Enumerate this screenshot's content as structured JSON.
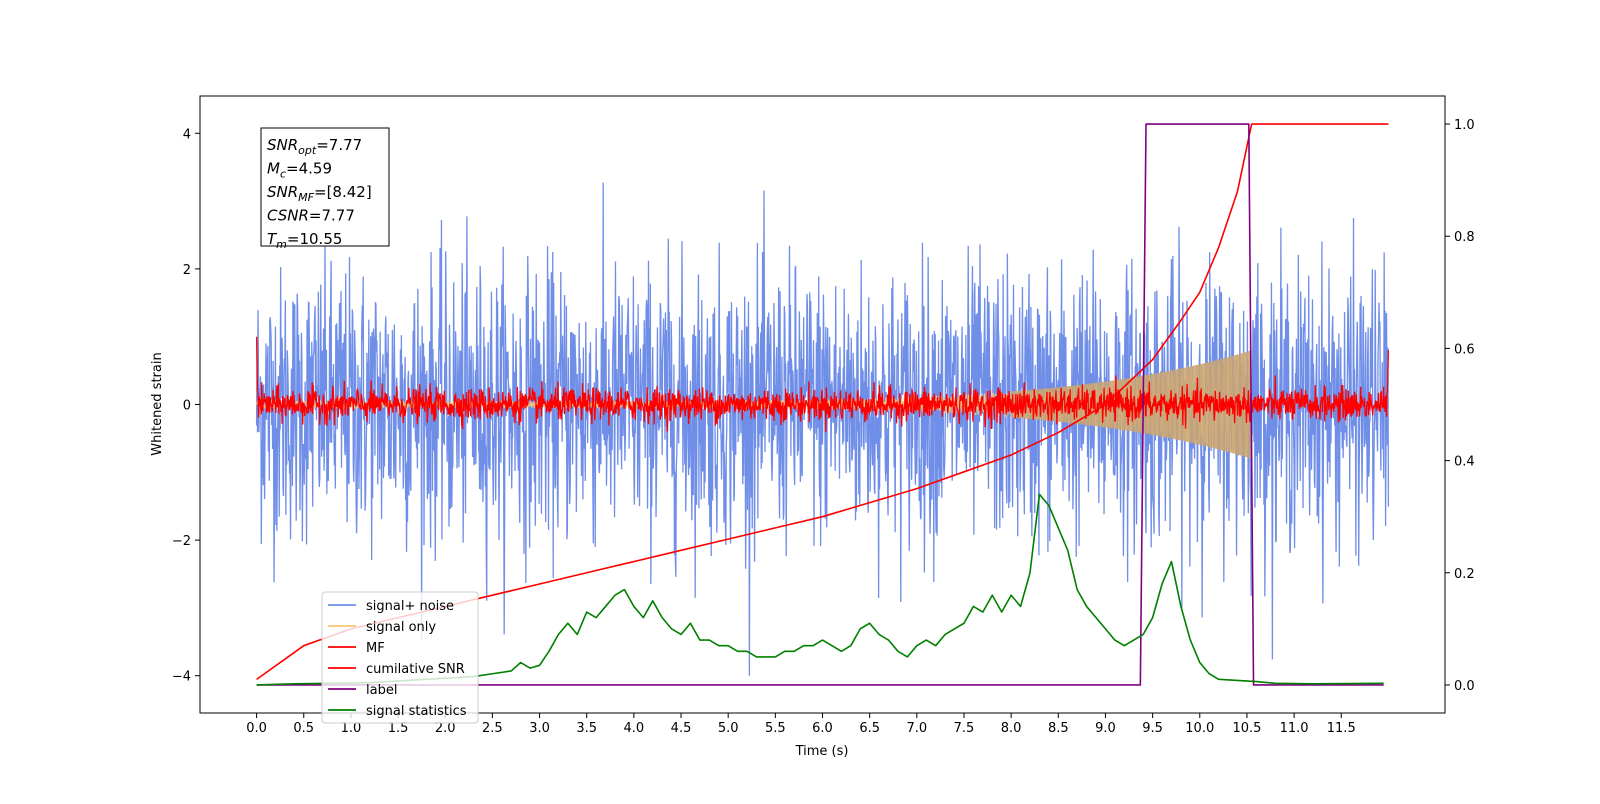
{
  "chart_data": {
    "type": "line",
    "xlabel": "Time (s)",
    "ylabel": "Whitened strain",
    "xlim": [
      -0.6,
      12.6
    ],
    "ylim_left": [
      -4.55,
      4.55
    ],
    "ylim_right": [
      -0.05,
      1.05
    ],
    "x_ticks": [
      "0.0",
      "0.5",
      "1.0",
      "1.5",
      "2.0",
      "2.5",
      "3.0",
      "3.5",
      "4.0",
      "4.5",
      "5.0",
      "5.5",
      "6.0",
      "6.5",
      "7.0",
      "7.5",
      "8.0",
      "8.5",
      "9.0",
      "9.5",
      "10.0",
      "10.5",
      "11.0",
      "11.5"
    ],
    "y_ticks_left": [
      "−4",
      "−2",
      "0",
      "2",
      "4"
    ],
    "y_ticks_right": [
      "0.0",
      "0.2",
      "0.4",
      "0.6",
      "0.8",
      "1.0"
    ],
    "legend_position": "lower left",
    "info_box": [
      {
        "var": "SNR",
        "sub": "opt",
        "val": "=7.77"
      },
      {
        "var": "M",
        "sub": "c",
        "val": "=4.59"
      },
      {
        "var": "SNR",
        "sub": "MF",
        "val": "=[8.42]"
      },
      {
        "var": "CSNR",
        "sub": "",
        "val": "=7.77"
      },
      {
        "var": "T",
        "sub": "m",
        "val": "=10.55"
      }
    ],
    "series": [
      {
        "name": "signal+ noise",
        "color": "#6f8ee8",
        "axis": "left",
        "style": "noise",
        "envelope_sigma": 1.0,
        "x_range": [
          0.0,
          12.0
        ]
      },
      {
        "name": "signal only",
        "color": "#f5c475",
        "axis": "left",
        "style": "chirp",
        "amplitude_start": 0.05,
        "amplitude_end": 0.8,
        "merger_time": 10.55
      },
      {
        "name": "MF",
        "color": "#ff0000",
        "axis": "left",
        "style": "noise",
        "envelope_sigma": 0.12
      },
      {
        "name": "cumilative SNR",
        "color": "#ff0000",
        "axis": "right",
        "x": [
          0.0,
          0.5,
          1.0,
          1.5,
          2.0,
          2.5,
          3.0,
          3.5,
          4.0,
          4.5,
          5.0,
          5.5,
          6.0,
          6.5,
          7.0,
          7.5,
          8.0,
          8.5,
          9.0,
          9.5,
          9.8,
          10.0,
          10.2,
          10.4,
          10.55,
          10.6,
          11.0,
          11.5,
          12.0
        ],
        "y": [
          0.01,
          0.07,
          0.1,
          0.12,
          0.14,
          0.16,
          0.18,
          0.2,
          0.22,
          0.24,
          0.26,
          0.28,
          0.3,
          0.325,
          0.35,
          0.38,
          0.41,
          0.45,
          0.5,
          0.58,
          0.65,
          0.7,
          0.78,
          0.88,
          1.0,
          1.0,
          1.0,
          1.0,
          1.0
        ]
      },
      {
        "name": "label",
        "color": "#800080",
        "axis": "right",
        "x": [
          0.0,
          9.37,
          9.43,
          10.52,
          10.57,
          11.0,
          11.95
        ],
        "y": [
          0.0,
          0.0,
          1.0,
          1.0,
          0.0,
          0.0,
          0.0
        ]
      },
      {
        "name": "signal statistics",
        "color": "#008000",
        "axis": "right",
        "x": [
          0.0,
          0.4,
          0.8,
          1.2,
          1.6,
          2.0,
          2.3,
          2.5,
          2.7,
          2.8,
          2.9,
          3.0,
          3.1,
          3.2,
          3.3,
          3.4,
          3.5,
          3.6,
          3.7,
          3.8,
          3.9,
          4.0,
          4.1,
          4.2,
          4.3,
          4.4,
          4.5,
          4.6,
          4.7,
          4.8,
          4.9,
          5.0,
          5.1,
          5.2,
          5.3,
          5.4,
          5.5,
          5.6,
          5.7,
          5.8,
          5.9,
          6.0,
          6.1,
          6.2,
          6.3,
          6.4,
          6.5,
          6.6,
          6.7,
          6.8,
          6.9,
          7.0,
          7.1,
          7.2,
          7.3,
          7.4,
          7.5,
          7.6,
          7.7,
          7.8,
          7.9,
          8.0,
          8.1,
          8.2,
          8.3,
          8.4,
          8.5,
          8.6,
          8.7,
          8.8,
          8.9,
          9.0,
          9.1,
          9.2,
          9.3,
          9.4,
          9.5,
          9.6,
          9.7,
          9.8,
          9.9,
          10.0,
          10.1,
          10.2,
          10.4,
          10.6,
          10.8,
          11.2,
          11.95
        ],
        "y": [
          0.0,
          0.002,
          0.003,
          0.004,
          0.008,
          0.012,
          0.015,
          0.02,
          0.025,
          0.04,
          0.03,
          0.035,
          0.06,
          0.09,
          0.11,
          0.09,
          0.13,
          0.12,
          0.14,
          0.16,
          0.17,
          0.14,
          0.12,
          0.15,
          0.12,
          0.1,
          0.09,
          0.11,
          0.08,
          0.08,
          0.07,
          0.07,
          0.06,
          0.06,
          0.05,
          0.05,
          0.05,
          0.06,
          0.06,
          0.07,
          0.07,
          0.08,
          0.07,
          0.06,
          0.07,
          0.1,
          0.11,
          0.09,
          0.08,
          0.06,
          0.05,
          0.07,
          0.08,
          0.07,
          0.09,
          0.1,
          0.11,
          0.14,
          0.13,
          0.16,
          0.13,
          0.16,
          0.14,
          0.2,
          0.34,
          0.32,
          0.28,
          0.24,
          0.17,
          0.14,
          0.12,
          0.1,
          0.08,
          0.07,
          0.08,
          0.09,
          0.12,
          0.18,
          0.22,
          0.14,
          0.08,
          0.04,
          0.02,
          0.01,
          0.008,
          0.006,
          0.003,
          0.002,
          0.003
        ]
      }
    ]
  }
}
